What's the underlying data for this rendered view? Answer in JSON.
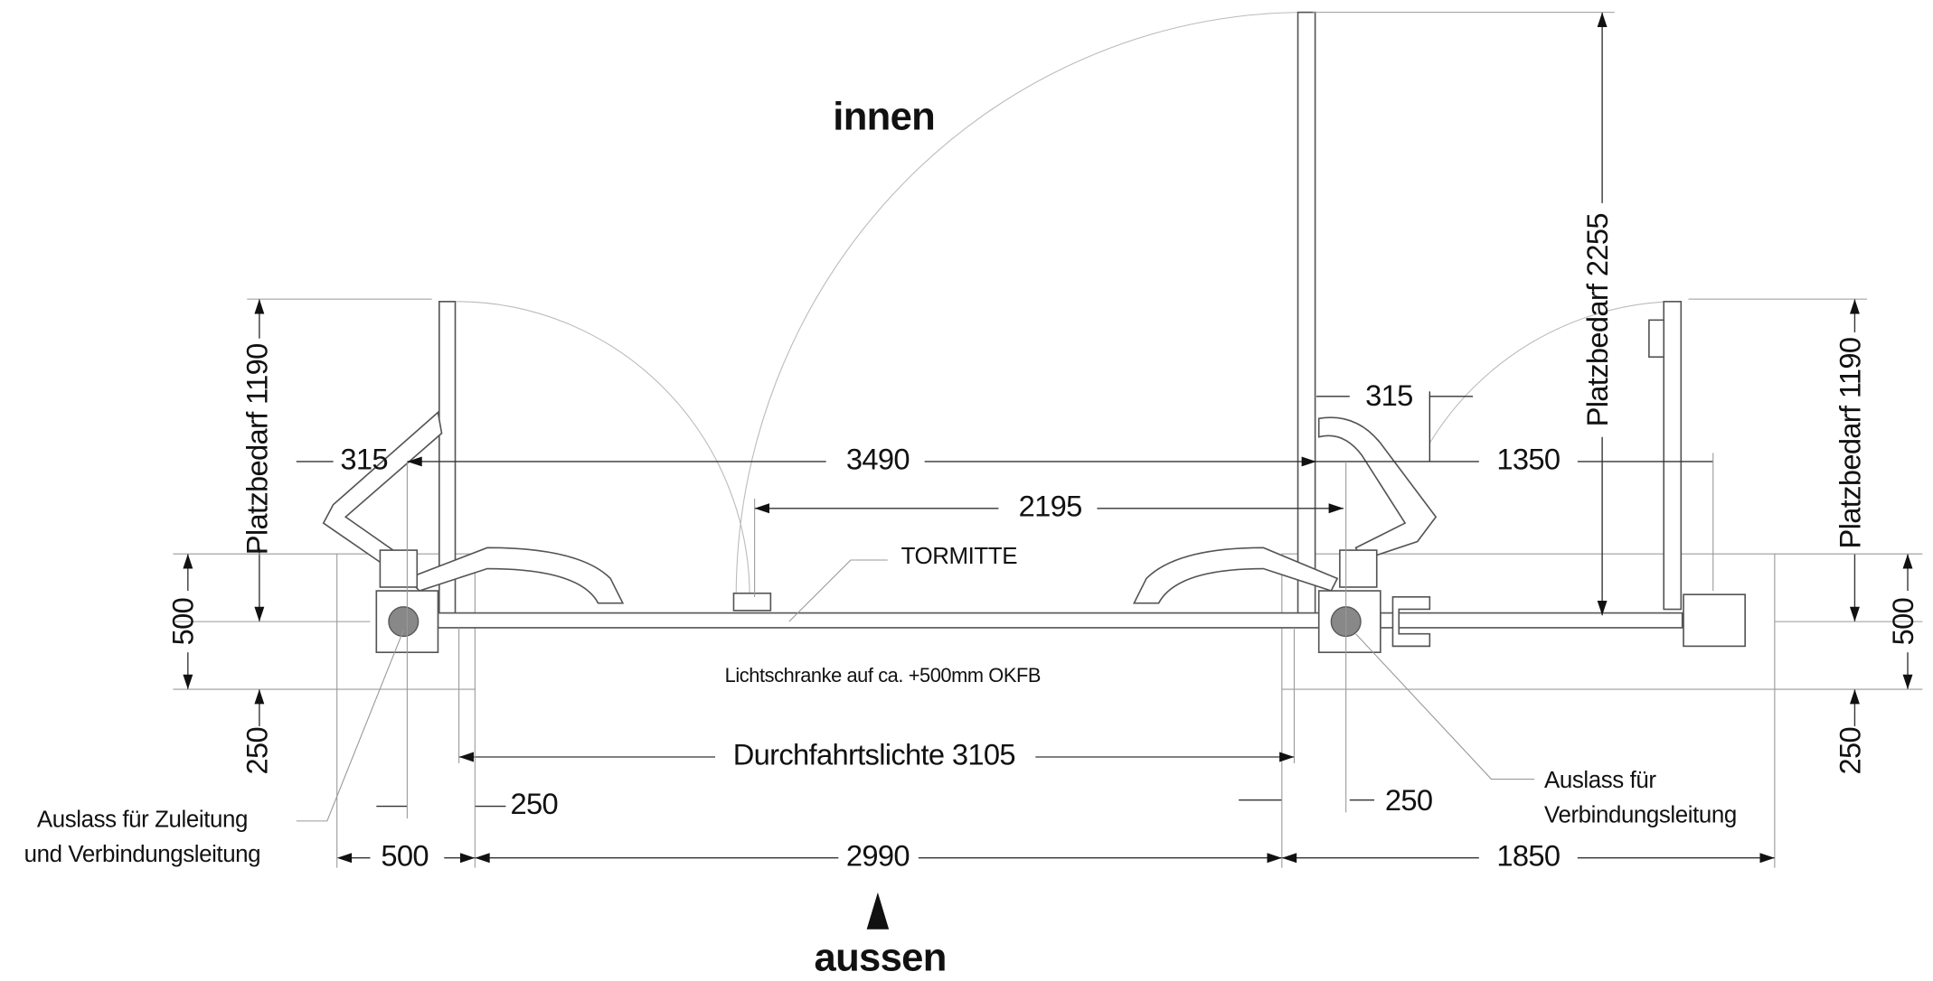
{
  "labels": {
    "inside": "innen",
    "outside": "aussen",
    "center": "TORMITTE",
    "light_barrier": "Lichtschranke auf ca. +500mm OKFB",
    "clear_width": "Durchfahrtslichte 3105",
    "outlet_left": [
      "Auslass für Zuleitung",
      "und Verbindungsleitung"
    ],
    "outlet_right": [
      "Auslass für",
      "Verbindungsleitung"
    ]
  },
  "dimensions": {
    "horizontal": [
      "315",
      "3490",
      "2195",
      "315",
      "1350",
      "250",
      "250",
      "500",
      "2990",
      "1850"
    ],
    "vertical": [
      "Platzbedarf 1190",
      "Platzbedarf 2255",
      "Platzbedarf 1190",
      "500",
      "500",
      "250",
      "250"
    ]
  }
}
